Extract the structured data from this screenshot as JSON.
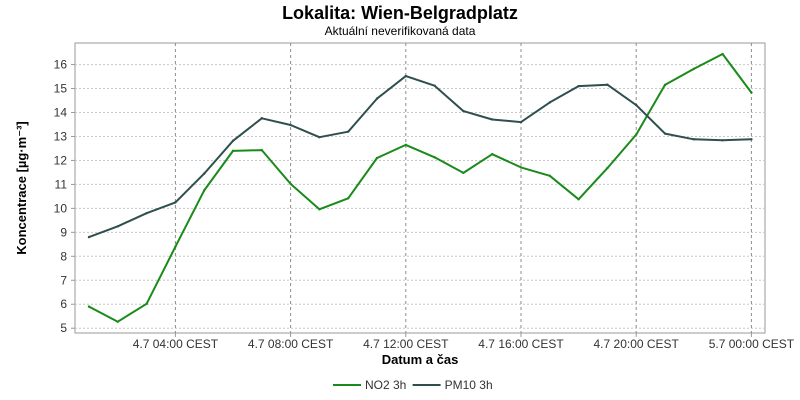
{
  "chart_data": {
    "type": "line",
    "title": "Lokalita: Wien-Belgradplatz",
    "subtitle": "Aktuální neverifikovaná data",
    "xlabel": "Datum a čas",
    "ylabel": "Koncentrace [µg·m⁻³]",
    "x": [
      "4.7 01:00",
      "4.7 02:00",
      "4.7 03:00",
      "4.7 04:00",
      "4.7 05:00",
      "4.7 06:00",
      "4.7 07:00",
      "4.7 08:00",
      "4.7 09:00",
      "4.7 10:00",
      "4.7 11:00",
      "4.7 12:00",
      "4.7 13:00",
      "4.7 14:00",
      "4.7 15:00",
      "4.7 16:00",
      "4.7 17:00",
      "4.7 18:00",
      "4.7 19:00",
      "4.7 20:00",
      "4.7 21:00",
      "4.7 22:00",
      "4.7 23:00",
      "5.7 00:00"
    ],
    "xticks": [
      "4.7 04:00 CEST",
      "4.7 08:00 CEST",
      "4.7 12:00 CEST",
      "4.7 16:00 CEST",
      "4.7 20:00 CEST",
      "5.7 00:00 CEST"
    ],
    "yticks": [
      5,
      6,
      7,
      8,
      9,
      10,
      11,
      12,
      13,
      14,
      15,
      16
    ],
    "ylim": [
      4.8,
      16.9
    ],
    "grid": true,
    "legend_position": "bottom",
    "series": [
      {
        "name": "NO2 3h",
        "color": "#1a8a1a",
        "values": [
          5.9,
          5.27,
          6.02,
          8.4,
          10.75,
          12.4,
          12.43,
          11.02,
          9.96,
          10.42,
          12.1,
          12.65,
          12.13,
          11.48,
          12.26,
          11.71,
          11.36,
          10.38,
          11.68,
          13.08,
          15.15,
          15.82,
          16.44,
          14.83
        ]
      },
      {
        "name": "PM10 3h",
        "color": "#2f4f4f",
        "values": [
          8.8,
          9.25,
          9.8,
          10.25,
          11.45,
          12.82,
          13.76,
          13.48,
          12.97,
          13.2,
          14.58,
          15.52,
          15.12,
          14.06,
          13.71,
          13.6,
          14.42,
          15.1,
          15.16,
          14.31,
          13.12,
          12.88,
          12.84,
          12.88
        ]
      }
    ]
  }
}
